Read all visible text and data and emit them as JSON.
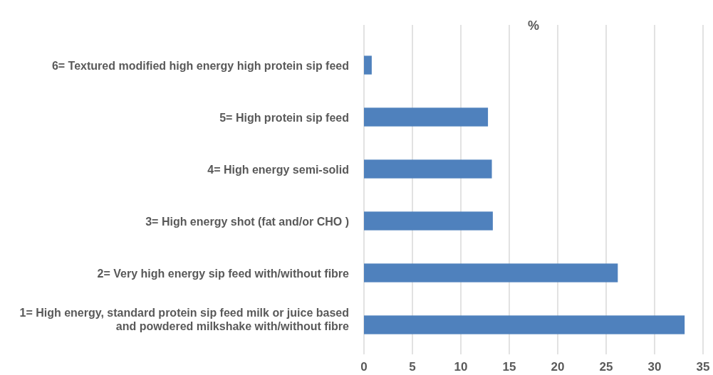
{
  "chart_data": {
    "type": "bar",
    "orientation": "horizontal",
    "title": "%",
    "categories": [
      "6= Textured modified high energy high protein sip feed",
      "5= High protein sip feed",
      "4= High energy semi-solid",
      "3= High energy shot (fat  and/or CHO )",
      "2= Very high energy sip feed  with/without fibre",
      "1= High energy, standard protein sip feed milk or juice based and powdered milkshake with/without fibre"
    ],
    "values": [
      0.8,
      12.8,
      13.2,
      13.3,
      26.2,
      33.1
    ],
    "color": "#4f81bd",
    "xlim": [
      0,
      35
    ],
    "xticks": [
      0,
      5,
      10,
      15,
      20,
      25,
      30,
      35
    ],
    "grid": "x"
  }
}
